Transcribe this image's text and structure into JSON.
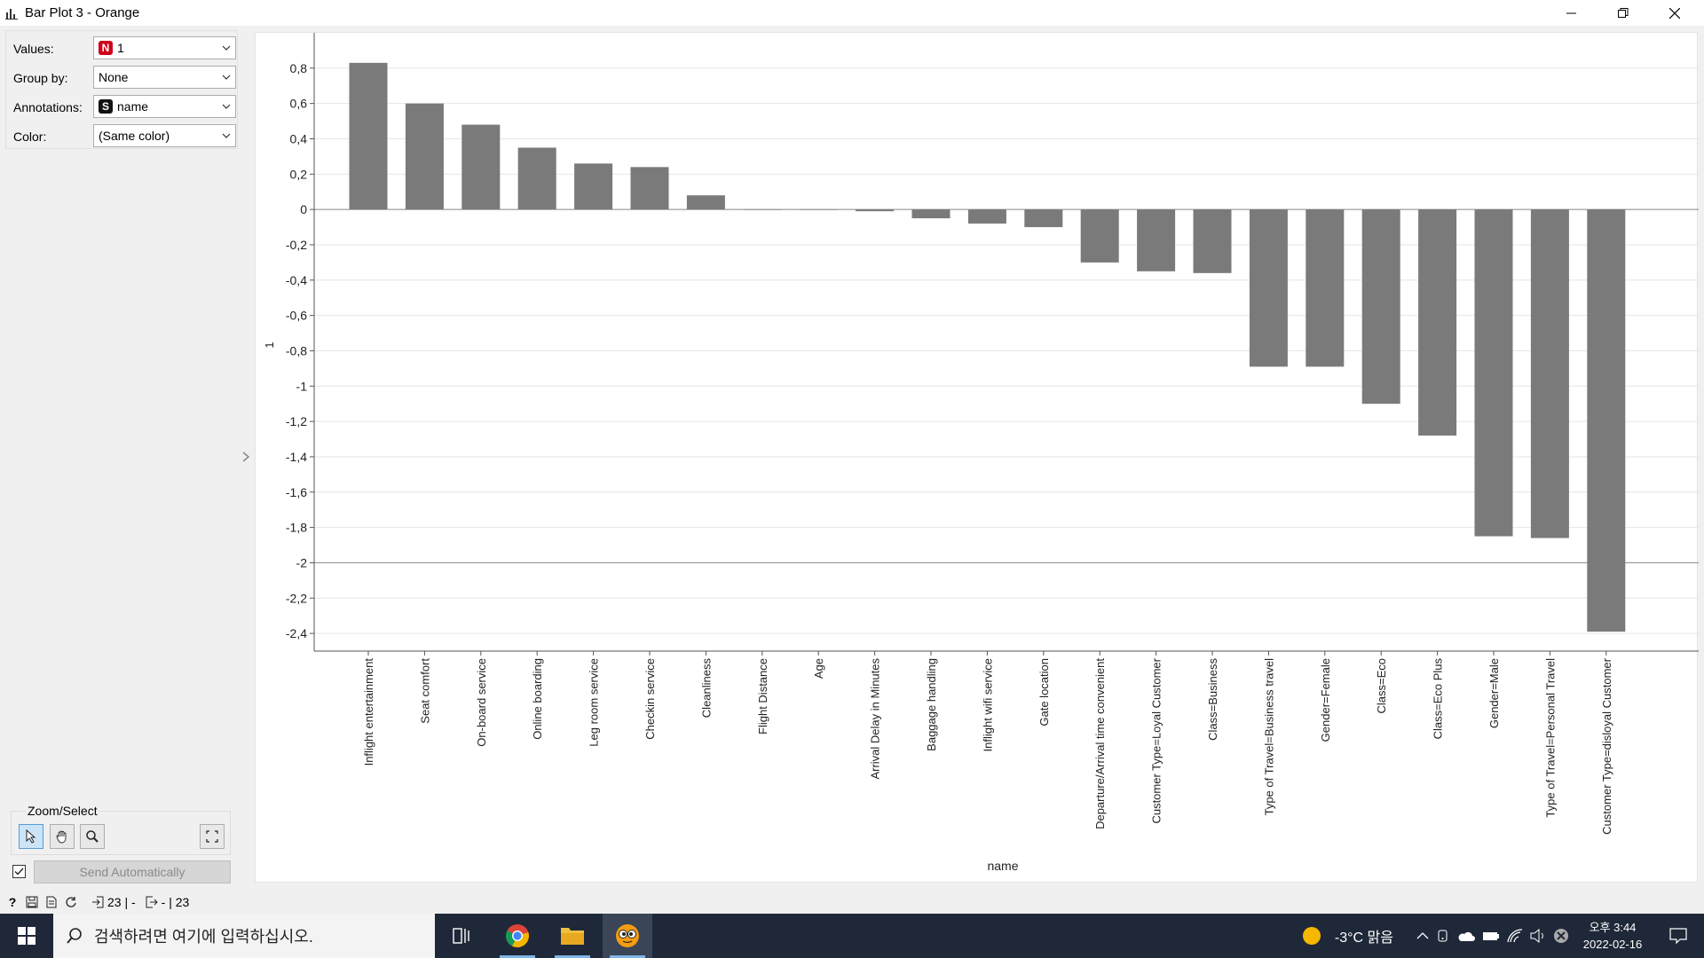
{
  "window": {
    "title": "Bar Plot 3 - Orange",
    "app_icon": "bar-chart-icon"
  },
  "controls": {
    "values": {
      "label": "Values:",
      "value": "1",
      "badge": "N",
      "badge_color": "#d0021b"
    },
    "group_by": {
      "label": "Group by:",
      "value": "None"
    },
    "annotations": {
      "label": "Annotations:",
      "value": "name",
      "badge": "S",
      "badge_color": "#111111"
    },
    "color": {
      "label": "Color:",
      "value": "(Same color)"
    }
  },
  "zoom": {
    "label": "Zoom/Select"
  },
  "send": {
    "label": "Send Automatically",
    "checked": true
  },
  "status": {
    "input_count": "23 | -",
    "output_count": "- | 23"
  },
  "chart_data": {
    "type": "bar",
    "xlabel": "name",
    "ylabel": "1",
    "ylim": [
      -2.5,
      1.0
    ],
    "yticks": [
      0.8,
      0.6,
      0.4,
      0.2,
      0,
      -0.2,
      -0.4,
      -0.6,
      -0.8,
      -1,
      -1.2,
      -1.4,
      -1.6,
      -1.8,
      -2,
      -2.2,
      -2.4
    ],
    "ytick_labels": [
      "0,8",
      "0,6",
      "0,4",
      "0,2",
      "0",
      "-0,2",
      "-0,4",
      "-0,6",
      "-0,8",
      "-1",
      "-1,2",
      "-1,4",
      "-1,6",
      "-1,8",
      "-2",
      "-2,2",
      "-2,4"
    ],
    "bar_color": "#7a7a7a",
    "categories": [
      "Inflight entertainment",
      "Seat comfort",
      "On-board service",
      "Online boarding",
      "Leg room service",
      "Checkin service",
      "Cleanliness",
      "Flight Distance",
      "Age",
      "Arrival Delay in Minutes",
      "Baggage handling",
      "Inflight wifi service",
      "Gate location",
      "Departure/Arrival time convenient",
      "Customer Type=Loyal Customer",
      "Class=Business",
      "Type of Travel=Business travel",
      "Gender=Female",
      "Class=Eco",
      "Class=Eco Plus",
      "Gender=Male",
      "Type of Travel=Personal Travel",
      "Customer Type=disloyal Customer"
    ],
    "values": [
      0.83,
      0.6,
      0.48,
      0.35,
      0.26,
      0.24,
      0.08,
      0.0,
      0.0,
      -0.01,
      -0.05,
      -0.08,
      -0.1,
      -0.3,
      -0.35,
      -0.36,
      -0.89,
      -0.89,
      -1.1,
      -1.28,
      -1.85,
      -1.86,
      -2.39
    ]
  },
  "taskbar": {
    "search_placeholder": "검색하려면 여기에 입력하십시오.",
    "weather": "-3°C  맑음",
    "time": "오후 3:44",
    "date": "2022-02-16"
  }
}
